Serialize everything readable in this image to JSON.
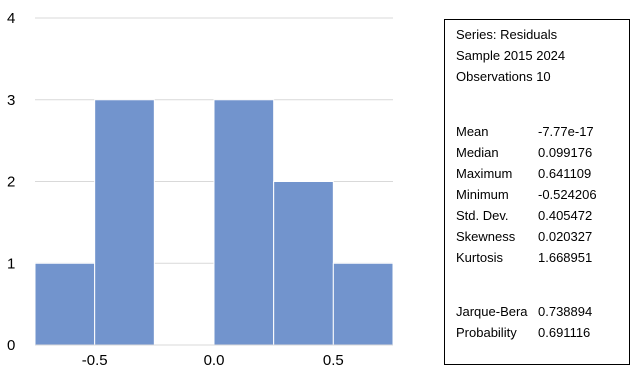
{
  "chart_data": {
    "type": "histogram",
    "bins": [
      {
        "from": -0.75,
        "to": -0.5,
        "count": 1
      },
      {
        "from": -0.5,
        "to": -0.25,
        "count": 3
      },
      {
        "from": -0.25,
        "to": 0.0,
        "count": 0
      },
      {
        "from": 0.0,
        "to": 0.25,
        "count": 3
      },
      {
        "from": 0.25,
        "to": 0.5,
        "count": 2
      },
      {
        "from": 0.5,
        "to": 0.75,
        "count": 1
      }
    ],
    "xlim": [
      -0.75,
      0.75
    ],
    "ylim": [
      0,
      4
    ],
    "x_ticks": [
      {
        "value": -0.5,
        "label": "-0.5"
      },
      {
        "value": 0.0,
        "label": "0.0"
      },
      {
        "value": 0.5,
        "label": "0.5"
      }
    ],
    "y_ticks": [
      {
        "value": 0,
        "label": "0"
      },
      {
        "value": 1,
        "label": "1"
      },
      {
        "value": 2,
        "label": "2"
      },
      {
        "value": 3,
        "label": "3"
      },
      {
        "value": 4,
        "label": "4"
      }
    ],
    "grid": "horizontal",
    "bar_color": "#7294CD",
    "bar_edge_color": "#ffffff",
    "grid_color": "#d9d9d9"
  },
  "stats": {
    "series_line": "Series: Residuals",
    "sample_line": "Sample 2015 2024",
    "observations_line": "Observations 10",
    "rows": [
      {
        "name": "Mean",
        "value": "-7.77e-17"
      },
      {
        "name": "Median",
        "value": "0.099176"
      },
      {
        "name": "Maximum",
        "value": "0.641109"
      },
      {
        "name": "Minimum",
        "value": "-0.524206"
      },
      {
        "name": "Std. Dev.",
        "value": "0.405472"
      },
      {
        "name": "Skewness",
        "value": "0.020327"
      },
      {
        "name": "Kurtosis",
        "value": "1.668951"
      },
      {
        "name": "Jarque-Bera",
        "value": "0.738894"
      },
      {
        "name": "Probability",
        "value": "0.691116"
      }
    ]
  }
}
